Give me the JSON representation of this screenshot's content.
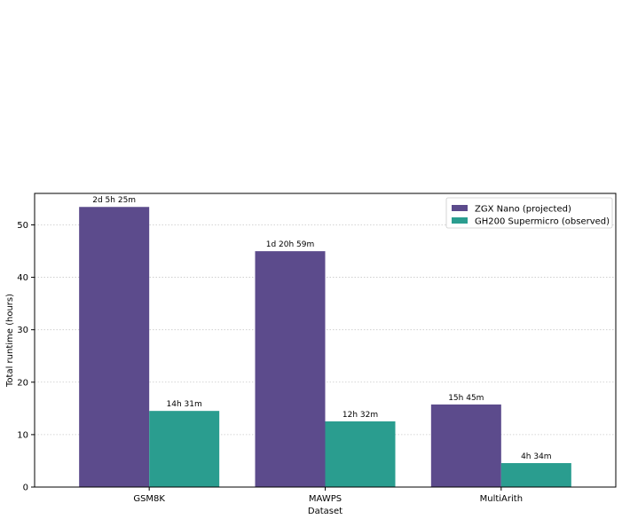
{
  "chart_data": {
    "type": "bar",
    "title": "",
    "xlabel": "Dataset",
    "ylabel": "Total runtime (hours)",
    "categories": [
      "GSM8K",
      "MAWPS",
      "MultiArith"
    ],
    "ylim": [
      0,
      56
    ],
    "yticks": [
      0,
      10,
      20,
      30,
      40,
      50
    ],
    "grid": "y-dotted",
    "legend_position": "top-right",
    "series": [
      {
        "name": "ZGX Nano (projected)",
        "color": "#5c4b8c",
        "values": [
          53.42,
          44.98,
          15.75
        ],
        "labels": [
          "2d 5h 25m",
          "1d 20h 59m",
          "15h 45m"
        ]
      },
      {
        "name": "GH200 Supermicro (observed)",
        "color": "#2a9d8f",
        "values": [
          14.52,
          12.53,
          4.57
        ],
        "labels": [
          "14h 31m",
          "12h 32m",
          "4h 34m"
        ]
      }
    ]
  }
}
